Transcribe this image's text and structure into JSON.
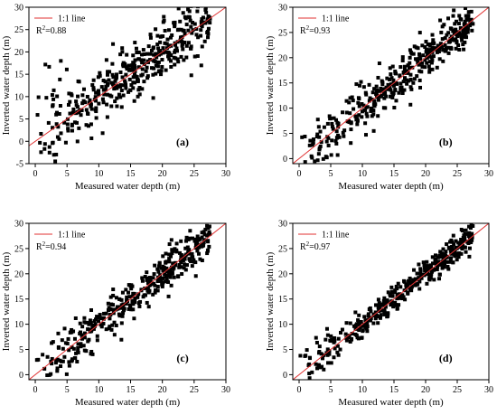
{
  "chart_data": [
    {
      "type": "scatter",
      "panel_label": "(a)",
      "xlabel": "Measured water depth (m)",
      "ylabel": "Inverted water depth (m)",
      "xlim": [
        -1,
        30
      ],
      "ylim": [
        -5,
        30
      ],
      "xticks": [
        "0",
        "5",
        "10",
        "15",
        "20",
        "25",
        "30"
      ],
      "yticks": [
        "-5",
        "0",
        "5",
        "10",
        "15",
        "20",
        "25",
        "30"
      ],
      "legend": {
        "line_label": "1:1 line",
        "r2_prefix": "R",
        "r2_sup": "2",
        "r2_value": "=0.88",
        "position": "top-left"
      },
      "line_color": "#e03030",
      "marker_color": "#000000",
      "r2": 0.88,
      "points_count": 420
    },
    {
      "type": "scatter",
      "panel_label": "(b)",
      "xlabel": "Measured water depth (m)",
      "ylabel": "Inverted water depth (m)",
      "xlim": [
        -1,
        30
      ],
      "ylim": [
        -1,
        30
      ],
      "xticks": [
        "0",
        "5",
        "10",
        "15",
        "20",
        "25",
        "30"
      ],
      "yticks": [
        "0",
        "5",
        "10",
        "15",
        "20",
        "25",
        "30"
      ],
      "legend": {
        "line_label": "1:1 line",
        "r2_prefix": "R",
        "r2_sup": "2",
        "r2_value": "=0.93",
        "position": "top-left"
      },
      "line_color": "#e03030",
      "marker_color": "#000000",
      "r2": 0.93,
      "points_count": 400
    },
    {
      "type": "scatter",
      "panel_label": "(c)",
      "xlabel": "Measured water depth (m)",
      "ylabel": "Inverted water depth (m)",
      "xlim": [
        -1,
        30
      ],
      "ylim": [
        -1,
        30
      ],
      "xticks": [
        "0",
        "5",
        "10",
        "15",
        "20",
        "25",
        "30"
      ],
      "yticks": [
        "0",
        "5",
        "10",
        "15",
        "20",
        "25",
        "30"
      ],
      "legend": {
        "line_label": "1:1 line",
        "r2_prefix": "R",
        "r2_sup": "2",
        "r2_value": "=0.94",
        "position": "top-left"
      },
      "line_color": "#e03030",
      "marker_color": "#000000",
      "r2": 0.94,
      "points_count": 400
    },
    {
      "type": "scatter",
      "panel_label": "(d)",
      "xlabel": "Measured water depth (m)",
      "ylabel": "Inverted water depth (m)",
      "xlim": [
        -1,
        30
      ],
      "ylim": [
        -1,
        30
      ],
      "xticks": [
        "0",
        "5",
        "10",
        "15",
        "20",
        "25",
        "30"
      ],
      "yticks": [
        "0",
        "5",
        "10",
        "15",
        "20",
        "25",
        "30"
      ],
      "legend": {
        "line_label": "1:1 line",
        "r2_prefix": "R",
        "r2_sup": "2",
        "r2_value": "=0.97",
        "position": "top-left"
      },
      "line_color": "#e03030",
      "marker_color": "#000000",
      "r2": 0.97,
      "points_count": 420
    }
  ]
}
